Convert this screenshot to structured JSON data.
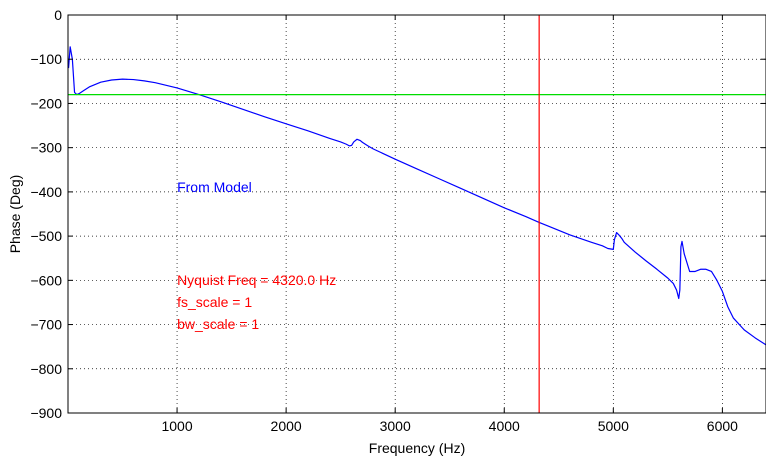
{
  "chart_data": {
    "type": "line",
    "xlabel": "Frequency (Hz)",
    "ylabel": "Phase (Deg)",
    "xlim": [
      0,
      6400
    ],
    "ylim": [
      -900,
      0
    ],
    "x_ticks": [
      1000,
      2000,
      3000,
      4000,
      5000,
      6000
    ],
    "y_ticks": [
      0,
      -100,
      -200,
      -300,
      -400,
      -500,
      -600,
      -700,
      -800,
      -900
    ],
    "x_tick_labels": [
      "1000",
      "2000",
      "3000",
      "4000",
      "5000",
      "6000"
    ],
    "y_tick_labels": [
      "0",
      "−100",
      "−200",
      "−300",
      "−400",
      "−500",
      "−600",
      "−700",
      "−800",
      "−900"
    ],
    "grid": true,
    "grid_style": "dotted",
    "series": [
      {
        "color": "#0000ff",
        "x": [
          5,
          20,
          40,
          60,
          80,
          100,
          150,
          200,
          300,
          400,
          500,
          600,
          700,
          800,
          1000,
          1200,
          1400,
          1600,
          1800,
          2000,
          2200,
          2400,
          2500,
          2550,
          2580,
          2600,
          2620,
          2650,
          2680,
          2700,
          2750,
          2800,
          3000,
          3200,
          3400,
          3600,
          3800,
          4000,
          4200,
          4320,
          4400,
          4600,
          4800,
          4900,
          4950,
          5000,
          5010,
          5030,
          5050,
          5080,
          5100,
          5200,
          5300,
          5400,
          5500,
          5550,
          5580,
          5600,
          5610,
          5620,
          5630,
          5650,
          5700,
          5750,
          5800,
          5850,
          5900,
          5950,
          6000,
          6050,
          6100,
          6200,
          6300,
          6400
        ],
        "y": [
          -120,
          -72,
          -100,
          -175,
          -180,
          -178,
          -170,
          -162,
          -152,
          -147,
          -145,
          -146,
          -149,
          -153,
          -165,
          -180,
          -196,
          -213,
          -230,
          -246,
          -262,
          -279,
          -287,
          -292,
          -296,
          -295,
          -287,
          -281,
          -284,
          -288,
          -296,
          -303,
          -326,
          -348,
          -370,
          -392,
          -414,
          -436,
          -456,
          -469,
          -477,
          -497,
          -514,
          -522,
          -528,
          -530,
          -508,
          -492,
          -497,
          -506,
          -514,
          -536,
          -556,
          -575,
          -595,
          -607,
          -622,
          -641,
          -622,
          -524,
          -512,
          -540,
          -580,
          -580,
          -575,
          -575,
          -580,
          -600,
          -625,
          -660,
          -685,
          -712,
          -730,
          -746
        ]
      },
      {
        "color": "#00dd00",
        "x": [
          0,
          6400
        ],
        "y": [
          -180,
          -180
        ]
      }
    ],
    "vlines": [
      {
        "x": 4320,
        "color": "#ff0000"
      }
    ],
    "annotations": [
      {
        "text": "From Model",
        "x": 1000,
        "y": -400,
        "color": "#0000ff"
      },
      {
        "text": "Nyquist Freq = 4320.0 Hz",
        "x": 1000,
        "y": -610,
        "color": "#ff0000"
      },
      {
        "text": "fs_scale =  1",
        "x": 1000,
        "y": -660,
        "color": "#ff0000"
      },
      {
        "text": "bw_scale =  1",
        "x": 1000,
        "y": -710,
        "color": "#ff0000"
      }
    ]
  }
}
